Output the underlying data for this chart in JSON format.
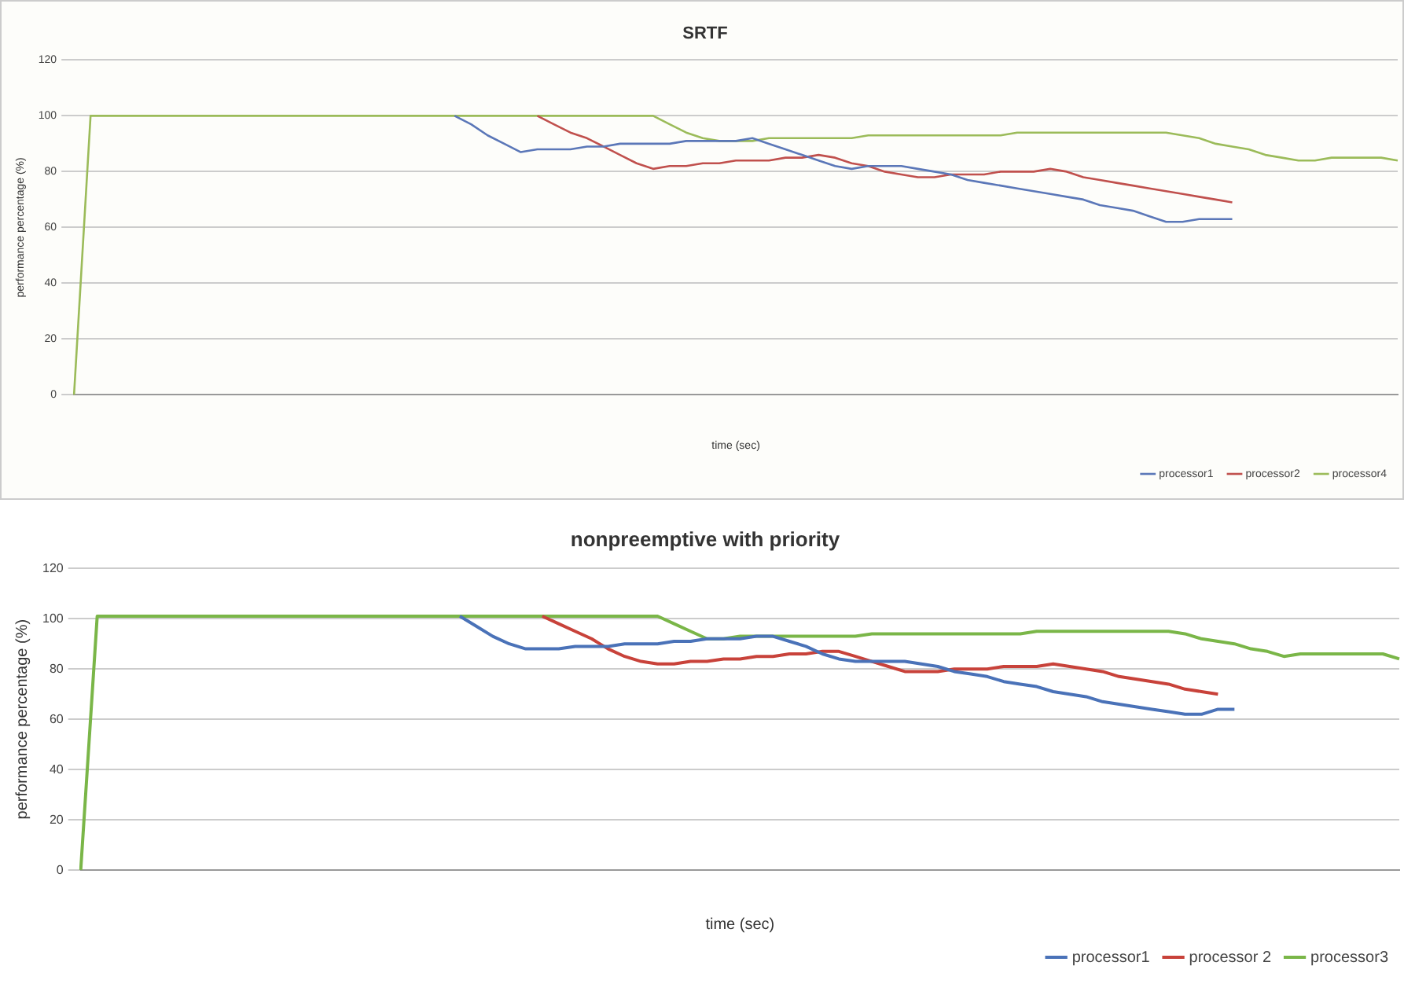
{
  "chart_data": [
    {
      "type": "line",
      "title": "SRTF",
      "xlabel": "time (sec)",
      "ylabel": "performance percentage (%)",
      "categories": [
        null,
        null,
        null,
        null,
        null,
        null,
        null,
        null,
        null,
        null,
        null,
        null,
        null,
        null,
        null,
        null,
        null,
        null,
        null,
        null,
        null,
        null,
        null,
        null,
        null,
        null,
        null,
        null,
        null,
        null,
        null,
        null,
        null,
        null,
        null,
        null,
        null,
        null,
        null,
        null,
        null,
        null,
        null,
        null,
        null,
        null,
        null,
        null,
        null,
        null,
        null,
        null,
        null,
        null,
        null,
        null,
        null,
        null,
        null,
        null,
        null,
        null,
        null,
        null,
        null,
        null,
        null,
        null,
        null,
        null,
        null,
        null,
        null,
        null,
        null,
        null,
        null,
        null,
        null,
        null,
        null
      ],
      "series": [
        {
          "name": "processor1",
          "color": "#5b77b8",
          "values": [
            null,
            null,
            null,
            null,
            null,
            null,
            null,
            null,
            null,
            null,
            null,
            null,
            null,
            null,
            null,
            null,
            null,
            null,
            null,
            null,
            null,
            null,
            null,
            100,
            97,
            93,
            90,
            87,
            88,
            88,
            88,
            89,
            89,
            90,
            90,
            90,
            90,
            91,
            91,
            91,
            91,
            92,
            90,
            88,
            86,
            84,
            82,
            81,
            82,
            82,
            82,
            81,
            80,
            79,
            77,
            76,
            75,
            74,
            73,
            72,
            71,
            70,
            68,
            67,
            66,
            64,
            62,
            62,
            63,
            63,
            63,
            null,
            null,
            null,
            null,
            null,
            null,
            null,
            null,
            null,
            null
          ]
        },
        {
          "name": "processor2",
          "color": "#c0504d",
          "values": [
            null,
            null,
            null,
            null,
            null,
            null,
            null,
            null,
            null,
            null,
            null,
            null,
            null,
            null,
            null,
            null,
            null,
            null,
            null,
            null,
            null,
            null,
            null,
            null,
            null,
            null,
            null,
            null,
            100,
            97,
            94,
            92,
            89,
            86,
            83,
            81,
            82,
            82,
            83,
            83,
            84,
            84,
            84,
            85,
            85,
            86,
            85,
            83,
            82,
            80,
            79,
            78,
            78,
            79,
            79,
            79,
            80,
            80,
            80,
            81,
            80,
            78,
            77,
            76,
            75,
            74,
            73,
            72,
            71,
            70,
            69,
            null,
            null,
            null,
            null,
            null,
            null,
            null,
            null,
            null,
            null
          ]
        },
        {
          "name": "processor4",
          "color": "#9bbb59",
          "values": [
            0,
            100,
            100,
            100,
            100,
            100,
            100,
            100,
            100,
            100,
            100,
            100,
            100,
            100,
            100,
            100,
            100,
            100,
            100,
            100,
            100,
            100,
            100,
            100,
            100,
            100,
            100,
            100,
            100,
            100,
            100,
            100,
            100,
            100,
            100,
            100,
            97,
            94,
            92,
            91,
            91,
            91,
            92,
            92,
            92,
            92,
            92,
            92,
            93,
            93,
            93,
            93,
            93,
            93,
            93,
            93,
            93,
            94,
            94,
            94,
            94,
            94,
            94,
            94,
            94,
            94,
            94,
            93,
            92,
            90,
            89,
            88,
            86,
            85,
            84,
            84,
            85,
            85,
            85,
            85,
            84
          ]
        }
      ],
      "ylim": [
        0,
        120
      ],
      "yticks": [
        0,
        20,
        40,
        60,
        80,
        100,
        120
      ],
      "grid": "y",
      "legend": "bottom"
    },
    {
      "type": "line",
      "title": "nonpreemptive with priority",
      "xlabel": "time (sec)",
      "ylabel": "performance percentage (%)",
      "categories": [
        null,
        null,
        null,
        null,
        null,
        null,
        null,
        null,
        null,
        null,
        null,
        null,
        null,
        null,
        null,
        null,
        null,
        null,
        null,
        null,
        null,
        null,
        null,
        null,
        null,
        null,
        null,
        null,
        null,
        null,
        null,
        null,
        null,
        null,
        null,
        null,
        null,
        null,
        null,
        null,
        null,
        null,
        null,
        null,
        null,
        null,
        null,
        null,
        null,
        null,
        null,
        null,
        null,
        null,
        null,
        null,
        null,
        null,
        null,
        null,
        null,
        null,
        null,
        null,
        null,
        null,
        null,
        null,
        null,
        null,
        null,
        null,
        null,
        null,
        null,
        null,
        null,
        null,
        null,
        null,
        null
      ],
      "series": [
        {
          "name": "processor1",
          "color": "#4a72b8",
          "values": [
            null,
            null,
            null,
            null,
            null,
            null,
            null,
            null,
            null,
            null,
            null,
            null,
            null,
            null,
            null,
            null,
            null,
            null,
            null,
            null,
            null,
            null,
            null,
            101,
            97,
            93,
            90,
            88,
            88,
            88,
            89,
            89,
            89,
            90,
            90,
            90,
            91,
            91,
            92,
            92,
            92,
            93,
            93,
            91,
            89,
            86,
            84,
            83,
            83,
            83,
            83,
            82,
            81,
            79,
            78,
            77,
            75,
            74,
            73,
            71,
            70,
            69,
            67,
            66,
            65,
            64,
            63,
            62,
            62,
            64,
            64,
            null,
            null,
            null,
            null,
            null,
            null,
            null,
            null,
            null,
            null
          ]
        },
        {
          "name": "processor 2",
          "color": "#c8423a",
          "values": [
            null,
            null,
            null,
            null,
            null,
            null,
            null,
            null,
            null,
            null,
            null,
            null,
            null,
            null,
            null,
            null,
            null,
            null,
            null,
            null,
            null,
            null,
            null,
            null,
            null,
            null,
            null,
            null,
            101,
            98,
            95,
            92,
            88,
            85,
            83,
            82,
            82,
            83,
            83,
            84,
            84,
            85,
            85,
            86,
            86,
            87,
            87,
            85,
            83,
            81,
            79,
            79,
            79,
            80,
            80,
            80,
            81,
            81,
            81,
            82,
            81,
            80,
            79,
            77,
            76,
            75,
            74,
            72,
            71,
            70,
            null,
            null,
            null,
            null,
            null,
            null,
            null,
            null,
            null,
            null,
            null
          ]
        },
        {
          "name": "processor3",
          "color": "#7ab648",
          "values": [
            0,
            101,
            101,
            101,
            101,
            101,
            101,
            101,
            101,
            101,
            101,
            101,
            101,
            101,
            101,
            101,
            101,
            101,
            101,
            101,
            101,
            101,
            101,
            101,
            101,
            101,
            101,
            101,
            101,
            101,
            101,
            101,
            101,
            101,
            101,
            101,
            98,
            95,
            92,
            92,
            93,
            93,
            93,
            93,
            93,
            93,
            93,
            93,
            94,
            94,
            94,
            94,
            94,
            94,
            94,
            94,
            94,
            94,
            95,
            95,
            95,
            95,
            95,
            95,
            95,
            95,
            95,
            94,
            92,
            91,
            90,
            88,
            87,
            85,
            86,
            86,
            86,
            86,
            86,
            86,
            84
          ]
        }
      ],
      "ylim": [
        0,
        120
      ],
      "yticks": [
        0,
        20,
        40,
        60,
        80,
        100,
        120
      ],
      "grid": "y",
      "legend": "bottom"
    }
  ]
}
